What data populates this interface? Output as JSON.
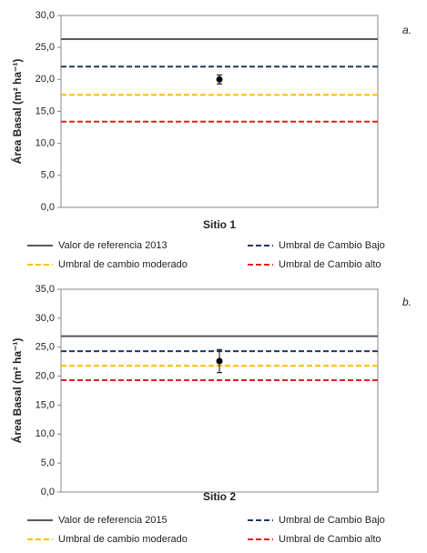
{
  "chart_data": [
    {
      "type": "errorbar",
      "label": "a.",
      "ylabel": "Área Basal (m² ha⁻¹)",
      "categories": [
        "Sitio 1"
      ],
      "values": [
        20.0
      ],
      "errors": [
        0.7
      ],
      "color": "#000000",
      "reference_lines": [
        {
          "name": "Valor de referencia  2013",
          "color": "#595959",
          "style": "solid",
          "value": 26.3
        },
        {
          "name": "Umbral de Cambio Bajo",
          "color": "#1f3864",
          "style": "dashed",
          "value": 22.0
        },
        {
          "name": "Umbral de cambio moderado",
          "color": "#ffc000",
          "style": "dashed",
          "value": 17.6
        },
        {
          "name": "Umbral de Cambio alto",
          "color": "#e02020",
          "style": "dashed",
          "value": 13.4
        }
      ],
      "ylim": [
        0,
        30
      ],
      "yticks": [
        {
          "value": 0,
          "label": "0,0"
        },
        {
          "value": 5,
          "label": "5,0"
        },
        {
          "value": 10,
          "label": "10,0"
        },
        {
          "value": 15,
          "label": "15,0"
        },
        {
          "value": 20,
          "label": "20,0"
        },
        {
          "value": 25,
          "label": "25,0"
        },
        {
          "value": 30,
          "label": "30,0"
        }
      ]
    },
    {
      "type": "errorbar",
      "label": "b.",
      "ylabel": "Área Basal (m² ha⁻¹)",
      "categories": [
        "Sitio 2"
      ],
      "values": [
        22.6
      ],
      "errors": [
        2.0
      ],
      "color": "#000000",
      "reference_lines": [
        {
          "name": "Valor de referencia  2015",
          "color": "#595959",
          "style": "solid",
          "value": 26.9
        },
        {
          "name": "Umbral de Cambio Bajo",
          "color": "#1f3864",
          "style": "dashed",
          "value": 24.3
        },
        {
          "name": "Umbral de cambio moderado",
          "color": "#ffc000",
          "style": "dashed",
          "value": 21.8
        },
        {
          "name": "Umbral de Cambio alto",
          "color": "#e02020",
          "style": "dashed",
          "value": 19.3
        }
      ],
      "ylim": [
        0,
        35
      ],
      "yticks": [
        {
          "value": 0,
          "label": "0,0"
        },
        {
          "value": 5,
          "label": "5,0"
        },
        {
          "value": 10,
          "label": "10,0"
        },
        {
          "value": 15,
          "label": "15,0"
        },
        {
          "value": 20,
          "label": "20,0"
        },
        {
          "value": 25,
          "label": "25,0"
        },
        {
          "value": 30,
          "label": "30,0"
        },
        {
          "value": 35,
          "label": "35,0"
        }
      ]
    }
  ]
}
